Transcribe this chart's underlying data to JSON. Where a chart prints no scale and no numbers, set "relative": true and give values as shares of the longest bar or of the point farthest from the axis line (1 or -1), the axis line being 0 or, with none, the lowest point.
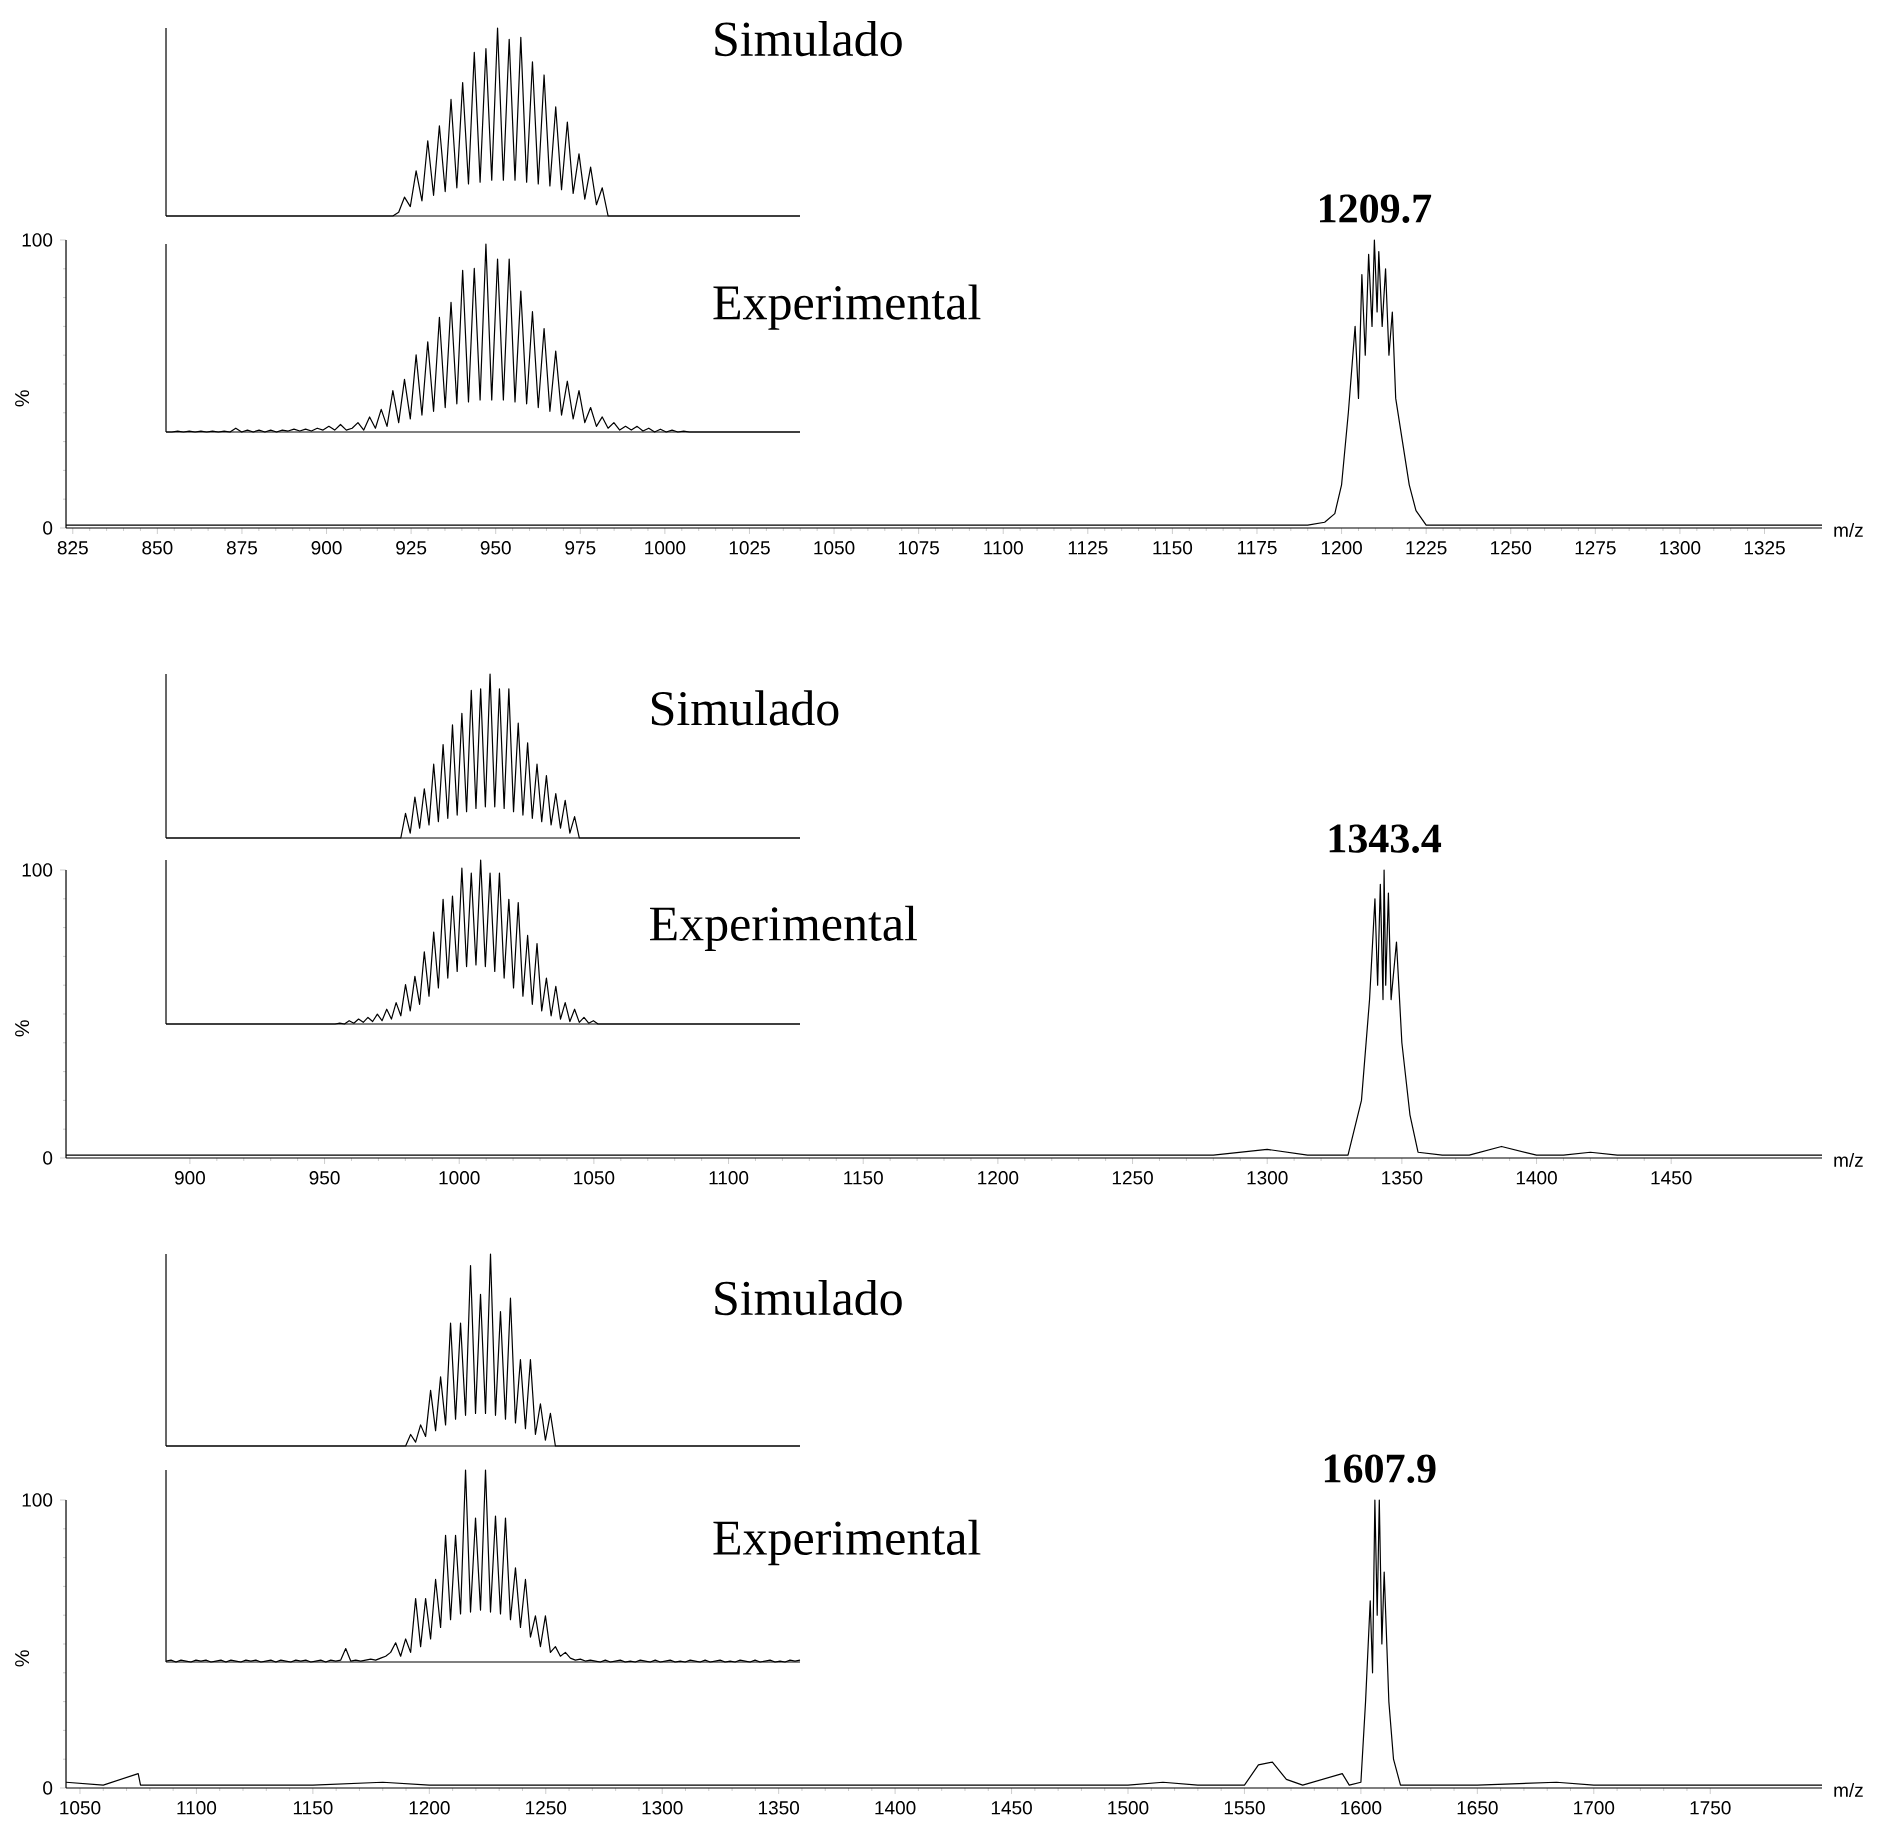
{
  "chart_data": [
    {
      "type": "line",
      "x": [
        823,
        840,
        860,
        880,
        900,
        920,
        940,
        960,
        980,
        1000,
        1020,
        1040,
        1060,
        1080,
        1100,
        1120,
        1140,
        1160,
        1180,
        1190,
        1195,
        1198,
        1200,
        1202,
        1204,
        1205,
        1206,
        1207,
        1208,
        1209,
        1209.7,
        1210.5,
        1211,
        1212,
        1213,
        1214,
        1215,
        1216,
        1218,
        1220,
        1222,
        1225,
        1230,
        1240,
        1260,
        1280,
        1300,
        1320,
        1342
      ],
      "values": [
        1,
        1,
        1,
        1,
        1,
        1,
        1,
        1,
        1,
        1,
        1,
        1,
        1,
        1,
        1,
        1,
        1,
        1,
        1,
        1,
        2,
        5,
        15,
        40,
        70,
        45,
        88,
        60,
        95,
        70,
        100,
        75,
        96,
        70,
        90,
        60,
        75,
        45,
        30,
        15,
        6,
        1,
        1,
        1,
        1,
        1,
        1,
        1,
        1
      ],
      "color": "#000000",
      "xlim": [
        823,
        1342
      ],
      "ylim": [
        0,
        100
      ],
      "yticks": [
        0,
        100
      ],
      "xticks": [
        825,
        850,
        875,
        900,
        925,
        950,
        975,
        1000,
        1025,
        1050,
        1075,
        1100,
        1125,
        1150,
        1175,
        1200,
        1225,
        1250,
        1275,
        1300,
        1325
      ],
      "xlabel": "m/z",
      "ylabel": "%",
      "annotations": [
        {
          "text": "1209.7",
          "x": 1209.7,
          "y": 100
        }
      ]
    },
    {
      "type": "line",
      "title": "Simulado",
      "relative": true,
      "color": "#000000",
      "categories": [
        null,
        null,
        null,
        null,
        null,
        null,
        null,
        null,
        null,
        null,
        null,
        null,
        null,
        null,
        null,
        null,
        null,
        null,
        null,
        null,
        null,
        null,
        null,
        null,
        null,
        null,
        null,
        null,
        null,
        null,
        null,
        null,
        null,
        null,
        null,
        null,
        null,
        null,
        null,
        null,
        null,
        null,
        null,
        null,
        null,
        null,
        null,
        null,
        null,
        null,
        null,
        null,
        null,
        null,
        null,
        null,
        null,
        null,
        null,
        null,
        null,
        null,
        null,
        null,
        null,
        null,
        null,
        null,
        null,
        null,
        null,
        null,
        null,
        null,
        null,
        null,
        null,
        null,
        null,
        null,
        null,
        null,
        null,
        null,
        null,
        null,
        null,
        null,
        null,
        null,
        null,
        null,
        null,
        null,
        null,
        null,
        null,
        null,
        null,
        null,
        null,
        null,
        null,
        null,
        null,
        null,
        null,
        null,
        null,
        null
      ],
      "values": [
        0,
        0,
        0,
        0,
        0,
        0,
        0,
        0,
        0,
        0,
        0,
        0,
        0,
        0,
        0,
        0,
        0,
        0,
        0,
        0,
        0,
        0,
        0,
        0,
        0,
        0,
        0,
        0,
        0,
        0,
        0,
        0,
        0,
        0,
        0,
        0,
        0,
        0,
        0,
        0,
        0.02,
        0.1,
        0.05,
        0.24,
        0.08,
        0.4,
        0.11,
        0.48,
        0.13,
        0.62,
        0.15,
        0.71,
        0.17,
        0.87,
        0.18,
        0.89,
        0.19,
        1.0,
        0.19,
        0.94,
        0.19,
        0.95,
        0.18,
        0.82,
        0.17,
        0.75,
        0.16,
        0.58,
        0.14,
        0.5,
        0.12,
        0.33,
        0.09,
        0.26,
        0.06,
        0.15,
        0,
        0,
        0,
        0,
        0,
        0,
        0,
        0,
        0,
        0,
        0,
        0,
        0,
        0,
        0,
        0,
        0,
        0,
        0,
        0,
        0,
        0,
        0,
        0,
        0,
        0,
        0,
        0,
        0,
        0,
        0,
        0,
        0,
        0
      ]
    },
    {
      "type": "line",
      "title": "Experimental",
      "relative": true,
      "color": "#000000",
      "categories": [
        null,
        null,
        null,
        null,
        null,
        null,
        null,
        null,
        null,
        null,
        null,
        null,
        null,
        null,
        null,
        null,
        null,
        null,
        null,
        null,
        null,
        null,
        null,
        null,
        null,
        null,
        null,
        null,
        null,
        null,
        null,
        null,
        null,
        null,
        null,
        null,
        null,
        null,
        null,
        null,
        null,
        null,
        null,
        null,
        null,
        null,
        null,
        null,
        null,
        null,
        null,
        null,
        null,
        null,
        null,
        null,
        null,
        null,
        null,
        null,
        null,
        null,
        null,
        null,
        null,
        null,
        null,
        null,
        null,
        null,
        null,
        null,
        null,
        null,
        null,
        null,
        null,
        null,
        null,
        null,
        null,
        null,
        null,
        null,
        null,
        null,
        null,
        null,
        null,
        null,
        null,
        null,
        null,
        null,
        null,
        null,
        null,
        null,
        null,
        null,
        null,
        null,
        null,
        null,
        null,
        null,
        null,
        null,
        null,
        null
      ],
      "values": [
        0,
        0,
        0.005,
        0,
        0.005,
        0,
        0.005,
        0,
        0.005,
        0,
        0.005,
        0,
        0.02,
        0,
        0.01,
        0,
        0.01,
        0,
        0.01,
        0,
        0.01,
        0.005,
        0.015,
        0.005,
        0.015,
        0.005,
        0.02,
        0.01,
        0.03,
        0.01,
        0.04,
        0.01,
        0.02,
        0.05,
        0.01,
        0.08,
        0.02,
        0.12,
        0.03,
        0.22,
        0.05,
        0.28,
        0.07,
        0.41,
        0.09,
        0.48,
        0.11,
        0.61,
        0.13,
        0.69,
        0.15,
        0.86,
        0.16,
        0.87,
        0.17,
        1.0,
        0.17,
        0.92,
        0.17,
        0.92,
        0.16,
        0.75,
        0.15,
        0.64,
        0.13,
        0.55,
        0.11,
        0.43,
        0.09,
        0.27,
        0.07,
        0.22,
        0.05,
        0.13,
        0.03,
        0.08,
        0.02,
        0.05,
        0.01,
        0.03,
        0.01,
        0.03,
        0.005,
        0.02,
        0,
        0.015,
        0,
        0.01,
        0,
        0.005,
        0,
        0,
        0,
        0,
        0,
        0,
        0,
        0,
        0,
        0,
        0,
        0,
        0,
        0,
        0,
        0,
        0,
        0,
        0,
        0
      ]
    },
    {
      "type": "line",
      "x": [
        854,
        880,
        900,
        950,
        1000,
        1050,
        1100,
        1150,
        1200,
        1250,
        1280,
        1300,
        1315,
        1330,
        1335,
        1338,
        1340,
        1341,
        1342,
        1343,
        1343.4,
        1344,
        1345,
        1346,
        1348,
        1350,
        1353,
        1356,
        1365,
        1375,
        1387,
        1400,
        1410,
        1420,
        1430,
        1460,
        1506
      ],
      "values": [
        1,
        1,
        1,
        1,
        1,
        1,
        1,
        1,
        1,
        1,
        1,
        3,
        1,
        1,
        20,
        55,
        90,
        60,
        95,
        55,
        100,
        60,
        92,
        55,
        75,
        40,
        15,
        2,
        1,
        1,
        4,
        1,
        1,
        2,
        1,
        1,
        1
      ],
      "color": "#000000",
      "xlim": [
        854,
        1506
      ],
      "ylim": [
        0,
        100
      ],
      "yticks": [
        0,
        100
      ],
      "xticks": [
        900,
        950,
        1000,
        1050,
        1100,
        1150,
        1200,
        1250,
        1300,
        1350,
        1400,
        1450
      ],
      "xlabel": "m/z",
      "ylabel": "%",
      "annotations": [
        {
          "text": "1343.4",
          "x": 1343.4,
          "y": 100
        }
      ]
    },
    {
      "type": "line",
      "title": "Simulado",
      "relative": true,
      "color": "#000000",
      "categories": [
        null,
        null,
        null,
        null,
        null,
        null,
        null,
        null,
        null,
        null,
        null,
        null,
        null,
        null,
        null,
        null,
        null,
        null,
        null,
        null,
        null,
        null,
        null,
        null,
        null,
        null,
        null,
        null,
        null,
        null,
        null,
        null,
        null,
        null,
        null,
        null,
        null,
        null,
        null,
        null,
        null,
        null,
        null,
        null,
        null,
        null,
        null,
        null,
        null,
        null,
        null,
        null,
        null,
        null,
        null,
        null,
        null,
        null,
        null,
        null,
        null,
        null,
        null,
        null,
        null,
        null,
        null,
        null,
        null,
        null,
        null,
        null,
        null,
        null,
        null,
        null,
        null,
        null,
        null,
        null,
        null,
        null,
        null,
        null,
        null,
        null,
        null,
        null,
        null,
        null,
        null,
        null,
        null,
        null,
        null,
        null,
        null,
        null,
        null,
        null,
        null,
        null,
        null,
        null,
        null,
        null,
        null,
        null,
        null,
        null,
        null,
        null,
        null,
        null,
        null,
        null,
        null,
        null,
        null,
        null,
        null,
        null,
        null,
        null,
        null,
        null,
        null,
        null,
        null,
        null,
        null,
        null,
        null,
        null,
        null,
        null
      ],
      "values": [
        0,
        0,
        0,
        0,
        0,
        0,
        0,
        0,
        0,
        0,
        0,
        0,
        0,
        0,
        0,
        0,
        0,
        0,
        0,
        0,
        0,
        0,
        0,
        0,
        0,
        0,
        0,
        0,
        0,
        0,
        0,
        0,
        0,
        0,
        0,
        0,
        0,
        0,
        0,
        0,
        0,
        0,
        0,
        0,
        0,
        0,
        0,
        0,
        0,
        0,
        0,
        0.15,
        0.03,
        0.25,
        0.06,
        0.3,
        0.08,
        0.45,
        0.1,
        0.57,
        0.12,
        0.69,
        0.14,
        0.76,
        0.16,
        0.9,
        0.18,
        0.91,
        0.19,
        1.0,
        0.19,
        0.91,
        0.18,
        0.91,
        0.16,
        0.7,
        0.14,
        0.58,
        0.12,
        0.45,
        0.1,
        0.38,
        0.08,
        0.27,
        0.06,
        0.23,
        0.03,
        0.13,
        0,
        0,
        0,
        0,
        0,
        0,
        0,
        0,
        0,
        0,
        0,
        0,
        0,
        0,
        0,
        0,
        0,
        0,
        0,
        0,
        0,
        0,
        0,
        0,
        0,
        0,
        0,
        0,
        0,
        0,
        0,
        0,
        0,
        0,
        0,
        0,
        0,
        0,
        0,
        0,
        0,
        0,
        0,
        0,
        0,
        0,
        0,
        0
      ]
    },
    {
      "type": "line",
      "title": "Experimental",
      "relative": true,
      "color": "#000000",
      "categories": [
        null,
        null,
        null,
        null,
        null,
        null,
        null,
        null,
        null,
        null,
        null,
        null,
        null,
        null,
        null,
        null,
        null,
        null,
        null,
        null,
        null,
        null,
        null,
        null,
        null,
        null,
        null,
        null,
        null,
        null,
        null,
        null,
        null,
        null,
        null,
        null,
        null,
        null,
        null,
        null,
        null,
        null,
        null,
        null,
        null,
        null,
        null,
        null,
        null,
        null,
        null,
        null,
        null,
        null,
        null,
        null,
        null,
        null,
        null,
        null,
        null,
        null,
        null,
        null,
        null,
        null,
        null,
        null,
        null,
        null,
        null,
        null,
        null,
        null,
        null,
        null,
        null,
        null,
        null,
        null,
        null,
        null,
        null,
        null,
        null,
        null,
        null,
        null,
        null,
        null,
        null,
        null,
        null,
        null,
        null,
        null,
        null,
        null,
        null,
        null,
        null,
        null,
        null,
        null,
        null,
        null,
        null,
        null,
        null,
        null,
        null,
        null,
        null,
        null,
        null,
        null,
        null,
        null,
        null,
        null,
        null,
        null,
        null,
        null,
        null,
        null,
        null,
        null,
        null,
        null,
        null,
        null,
        null,
        null,
        null,
        null
      ],
      "values": [
        0,
        0,
        0,
        0,
        0,
        0,
        0,
        0,
        0,
        0,
        0,
        0,
        0,
        0,
        0,
        0,
        0,
        0,
        0,
        0,
        0,
        0,
        0,
        0,
        0,
        0,
        0,
        0,
        0,
        0,
        0,
        0,
        0,
        0,
        0,
        0,
        0,
        0.005,
        0,
        0.02,
        0.005,
        0.03,
        0.01,
        0.04,
        0.015,
        0.06,
        0.02,
        0.09,
        0.03,
        0.13,
        0.05,
        0.24,
        0.08,
        0.29,
        0.12,
        0.44,
        0.17,
        0.56,
        0.22,
        0.76,
        0.28,
        0.78,
        0.32,
        0.95,
        0.35,
        0.92,
        0.36,
        1.0,
        0.35,
        0.92,
        0.32,
        0.92,
        0.28,
        0.76,
        0.22,
        0.74,
        0.17,
        0.54,
        0.12,
        0.49,
        0.08,
        0.28,
        0.05,
        0.23,
        0.03,
        0.13,
        0.015,
        0.09,
        0.01,
        0.04,
        0.005,
        0.02,
        0,
        0,
        0,
        0,
        0,
        0,
        0,
        0,
        0,
        0,
        0,
        0,
        0,
        0,
        0,
        0,
        0,
        0,
        0,
        0,
        0,
        0,
        0,
        0,
        0,
        0,
        0,
        0,
        0,
        0,
        0,
        0,
        0,
        0,
        0,
        0,
        0,
        0,
        0,
        0,
        0,
        0,
        0,
        0
      ]
    },
    {
      "type": "line",
      "x": [
        1044,
        1060,
        1075,
        1076,
        1090,
        1120,
        1150,
        1180,
        1200,
        1250,
        1300,
        1350,
        1400,
        1450,
        1500,
        1515,
        1530,
        1550,
        1556,
        1562,
        1568,
        1575,
        1592,
        1595,
        1600,
        1602,
        1604,
        1605,
        1606,
        1607,
        1607.9,
        1609,
        1610,
        1612,
        1614,
        1617,
        1630,
        1650,
        1684,
        1700,
        1750,
        1798
      ],
      "values": [
        2,
        1,
        5,
        1,
        1,
        1,
        1,
        2,
        1,
        1,
        1,
        1,
        1,
        1,
        1,
        2,
        1,
        1,
        8,
        9,
        3,
        1,
        5,
        1,
        2,
        30,
        65,
        40,
        100,
        60,
        100,
        50,
        75,
        30,
        10,
        1,
        1,
        1,
        2,
        1,
        1,
        1
      ],
      "color": "#000000",
      "xlim": [
        1044,
        1798
      ],
      "ylim": [
        0,
        100
      ],
      "yticks": [
        0,
        100
      ],
      "xticks": [
        1050,
        1100,
        1150,
        1200,
        1250,
        1300,
        1350,
        1400,
        1450,
        1500,
        1550,
        1600,
        1650,
        1700,
        1750
      ],
      "xlabel": "m/z",
      "ylabel": "%",
      "annotations": [
        {
          "text": "1607.9",
          "x": 1607.9,
          "y": 100
        }
      ]
    },
    {
      "type": "line",
      "title": "Simulado",
      "relative": true,
      "color": "#000000",
      "categories": [
        null,
        null,
        null,
        null,
        null,
        null,
        null,
        null,
        null,
        null,
        null,
        null,
        null,
        null,
        null,
        null,
        null,
        null,
        null,
        null,
        null,
        null,
        null,
        null,
        null,
        null,
        null,
        null,
        null,
        null,
        null,
        null,
        null,
        null,
        null,
        null,
        null,
        null,
        null,
        null,
        null,
        null,
        null,
        null,
        null,
        null,
        null,
        null,
        null,
        null,
        null,
        null,
        null,
        null,
        null,
        null,
        null,
        null,
        null,
        null,
        null,
        null,
        null,
        null,
        null,
        null,
        null,
        null,
        null,
        null,
        null,
        null,
        null,
        null,
        null,
        null,
        null,
        null,
        null,
        null,
        null,
        null,
        null,
        null,
        null,
        null,
        null,
        null,
        null,
        null,
        null,
        null,
        null,
        null,
        null,
        null,
        null,
        null,
        null,
        null,
        null,
        null,
        null,
        null,
        null,
        null,
        null,
        null,
        null,
        null,
        null,
        null,
        null,
        null,
        null,
        null,
        null,
        null,
        null,
        null,
        null,
        null,
        null,
        null,
        null,
        null,
        null,
        null
      ],
      "values": [
        0,
        0,
        0,
        0,
        0,
        0,
        0,
        0,
        0,
        0,
        0,
        0,
        0,
        0,
        0,
        0,
        0,
        0,
        0,
        0,
        0,
        0,
        0,
        0,
        0,
        0,
        0,
        0,
        0,
        0,
        0,
        0,
        0,
        0,
        0,
        0,
        0,
        0,
        0,
        0,
        0,
        0,
        0,
        0,
        0,
        0,
        0,
        0,
        0,
        0.06,
        0.02,
        0.11,
        0.05,
        0.29,
        0.08,
        0.36,
        0.11,
        0.64,
        0.14,
        0.64,
        0.16,
        0.94,
        0.17,
        0.79,
        0.17,
        1.0,
        0.16,
        0.7,
        0.14,
        0.77,
        0.12,
        0.45,
        0.09,
        0.45,
        0.06,
        0.22,
        0.03,
        0.17,
        0,
        0,
        0,
        0,
        0,
        0,
        0,
        0,
        0,
        0,
        0,
        0,
        0,
        0,
        0,
        0,
        0,
        0,
        0,
        0,
        0,
        0,
        0,
        0,
        0,
        0,
        0,
        0,
        0,
        0,
        0,
        0,
        0,
        0,
        0,
        0,
        0,
        0,
        0,
        0,
        0,
        0,
        0,
        0,
        0,
        0,
        0,
        0,
        0,
        0
      ]
    },
    {
      "type": "line",
      "title": "Experimental",
      "relative": true,
      "color": "#000000",
      "categories": [
        null,
        null,
        null,
        null,
        null,
        null,
        null,
        null,
        null,
        null,
        null,
        null,
        null,
        null,
        null,
        null,
        null,
        null,
        null,
        null,
        null,
        null,
        null,
        null,
        null,
        null,
        null,
        null,
        null,
        null,
        null,
        null,
        null,
        null,
        null,
        null,
        null,
        null,
        null,
        null,
        null,
        null,
        null,
        null,
        null,
        null,
        null,
        null,
        null,
        null,
        null,
        null,
        null,
        null,
        null,
        null,
        null,
        null,
        null,
        null,
        null,
        null,
        null,
        null,
        null,
        null,
        null,
        null,
        null,
        null,
        null,
        null,
        null,
        null,
        null,
        null,
        null,
        null,
        null,
        null,
        null,
        null,
        null,
        null,
        null,
        null,
        null,
        null,
        null,
        null,
        null,
        null,
        null,
        null,
        null,
        null,
        null,
        null,
        null,
        null,
        null,
        null,
        null,
        null,
        null,
        null,
        null,
        null,
        null,
        null,
        null,
        null,
        null,
        null,
        null,
        null,
        null,
        null,
        null,
        null,
        null,
        null,
        null,
        null,
        null,
        null,
        null,
        null
      ],
      "values": [
        0.005,
        0.01,
        0,
        0.01,
        0.005,
        0,
        0.01,
        0.005,
        0.01,
        0,
        0.005,
        0.01,
        0,
        0.01,
        0.005,
        0,
        0.01,
        0.005,
        0.01,
        0,
        0.005,
        0.01,
        0,
        0.01,
        0.005,
        0,
        0.01,
        0.005,
        0.01,
        0,
        0.005,
        0.01,
        0,
        0.01,
        0.005,
        0.01,
        0.07,
        0.005,
        0.01,
        0.005,
        0.01,
        0.015,
        0.01,
        0.02,
        0.03,
        0.05,
        0.1,
        0.03,
        0.12,
        0.05,
        0.33,
        0.08,
        0.33,
        0.12,
        0.43,
        0.18,
        0.66,
        0.22,
        0.66,
        0.25,
        1.0,
        0.26,
        0.75,
        0.27,
        1.0,
        0.26,
        0.76,
        0.25,
        0.75,
        0.22,
        0.49,
        0.18,
        0.43,
        0.13,
        0.24,
        0.08,
        0.24,
        0.05,
        0.08,
        0.03,
        0.05,
        0.02,
        0.01,
        0.015,
        0.005,
        0.01,
        0.005,
        0,
        0.01,
        0,
        0.005,
        0.01,
        0,
        0.005,
        0,
        0.01,
        0.005,
        0,
        0.01,
        0,
        0.005,
        0.01,
        0,
        0.005,
        0,
        0.01,
        0.005,
        0,
        0.01,
        0,
        0.005,
        0.01,
        0,
        0.005,
        0,
        0.01,
        0.005,
        0,
        0.01,
        0,
        0.005,
        0.01,
        0,
        0.005,
        0,
        0.01,
        0.005,
        0.01
      ]
    }
  ]
}
